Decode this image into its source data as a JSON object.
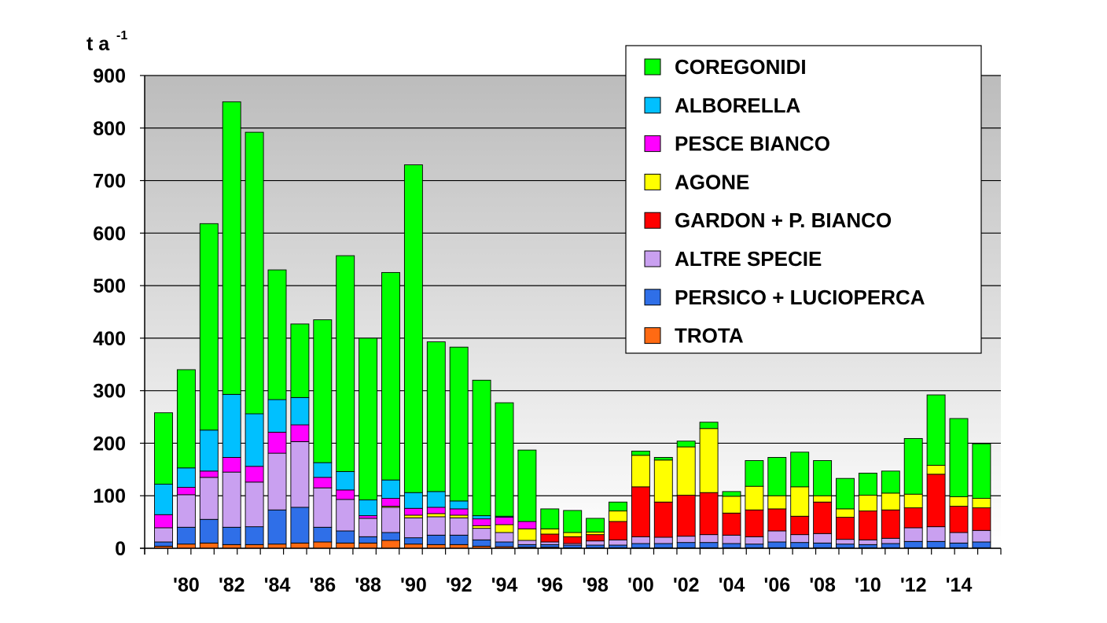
{
  "chart_data": {
    "type": "bar",
    "stacked": true,
    "title": "",
    "xlabel": "",
    "ylabel": "t a",
    "ylabel_superscript": "-1",
    "ylim": [
      0,
      900
    ],
    "y_ticks": [
      "900",
      "800",
      "700",
      "600",
      "500",
      "400",
      "300",
      "200",
      "100",
      "0"
    ],
    "y_tick_values": [
      900,
      800,
      700,
      600,
      500,
      400,
      300,
      200,
      100,
      0
    ],
    "grid": true,
    "legend_position": "top-right",
    "categories": [
      "1979",
      "1980",
      "1981",
      "1982",
      "1983",
      "1984",
      "1985",
      "1986",
      "1987",
      "1988",
      "1989",
      "1990",
      "1991",
      "1992",
      "1993",
      "1994",
      "1995",
      "1996",
      "1997",
      "1998",
      "1999",
      "2000",
      "2001",
      "2002",
      "2003",
      "2004",
      "2005",
      "2006",
      "2007",
      "2008",
      "2009",
      "2010",
      "2011",
      "2012",
      "2013",
      "2014",
      "2015"
    ],
    "x_tick_labels": [
      {
        "label": "'80",
        "category": "1980"
      },
      {
        "label": "'82",
        "category": "1982"
      },
      {
        "label": "'84",
        "category": "1984"
      },
      {
        "label": "'86",
        "category": "1986"
      },
      {
        "label": "'88",
        "category": "1988"
      },
      {
        "label": "'90",
        "category": "1990"
      },
      {
        "label": "'92",
        "category": "1992"
      },
      {
        "label": "'94",
        "category": "1994"
      },
      {
        "label": "'96",
        "category": "1996"
      },
      {
        "label": "'98",
        "category": "1998"
      },
      {
        "label": "'00",
        "category": "2000"
      },
      {
        "label": "'02",
        "category": "2002"
      },
      {
        "label": "'04",
        "category": "2004"
      },
      {
        "label": "'06",
        "category": "2006"
      },
      {
        "label": "'08",
        "category": "2008"
      },
      {
        "label": "'10",
        "category": "2010"
      },
      {
        "label": "'12",
        "category": "2012"
      },
      {
        "label": "'14",
        "category": "2014"
      }
    ],
    "series": [
      {
        "name": "TROTA",
        "color": "#ff6a13",
        "values": [
          4,
          8,
          10,
          7,
          7,
          8,
          10,
          12,
          10,
          10,
          15,
          8,
          7,
          7,
          4,
          3,
          2,
          2,
          1,
          1,
          1,
          1,
          1,
          1,
          1,
          1,
          1,
          1,
          1,
          1,
          1,
          1,
          1,
          1,
          1,
          1,
          1
        ]
      },
      {
        "name": "PERSICO + LUCIOPERCA",
        "color": "#2f6fe8",
        "values": [
          8,
          32,
          45,
          33,
          34,
          65,
          68,
          28,
          23,
          12,
          15,
          12,
          18,
          18,
          12,
          9,
          5,
          5,
          5,
          5,
          5,
          8,
          8,
          10,
          10,
          8,
          7,
          11,
          10,
          9,
          7,
          6,
          8,
          12,
          12,
          9,
          11
        ]
      },
      {
        "name": "ALTRE SPECIE",
        "color": "#c9a0f0",
        "values": [
          27,
          62,
          80,
          105,
          85,
          108,
          125,
          75,
          60,
          35,
          48,
          38,
          35,
          33,
          22,
          18,
          8,
          5,
          3,
          8,
          10,
          13,
          12,
          12,
          15,
          16,
          14,
          21,
          15,
          18,
          9,
          9,
          10,
          26,
          28,
          20,
          22
        ]
      },
      {
        "name": "GARDON + P. BIANCO",
        "color": "#ff0000",
        "values": [
          0,
          0,
          0,
          0,
          0,
          0,
          0,
          0,
          0,
          0,
          0,
          0,
          0,
          0,
          0,
          0,
          0,
          15,
          13,
          12,
          35,
          95,
          67,
          78,
          80,
          42,
          51,
          42,
          35,
          60,
          42,
          55,
          54,
          38,
          100,
          50,
          43
        ]
      },
      {
        "name": "AGONE",
        "color": "#ffff00",
        "values": [
          0,
          0,
          0,
          0,
          0,
          0,
          0,
          0,
          0,
          0,
          2,
          5,
          6,
          5,
          5,
          15,
          22,
          10,
          8,
          5,
          20,
          60,
          80,
          92,
          122,
          32,
          45,
          25,
          56,
          12,
          16,
          30,
          32,
          26,
          17,
          18,
          18
        ]
      },
      {
        "name": "PESCE BIANCO",
        "color": "#ff00ff",
        "values": [
          25,
          14,
          12,
          28,
          30,
          40,
          32,
          20,
          18,
          5,
          15,
          13,
          12,
          12,
          13,
          14,
          14,
          0,
          0,
          0,
          0,
          0,
          0,
          0,
          0,
          0,
          0,
          0,
          0,
          0,
          0,
          0,
          0,
          0,
          0,
          0,
          0
        ]
      },
      {
        "name": "ALBORELLA",
        "color": "#00c0ff",
        "values": [
          58,
          37,
          78,
          120,
          100,
          62,
          52,
          28,
          35,
          30,
          35,
          30,
          30,
          15,
          6,
          2,
          0,
          0,
          0,
          0,
          0,
          0,
          0,
          0,
          0,
          0,
          0,
          0,
          0,
          0,
          0,
          0,
          0,
          0,
          0,
          0,
          0
        ]
      },
      {
        "name": "COREGONIDI",
        "color": "#00ff00",
        "values": [
          136,
          187,
          393,
          557,
          536,
          247,
          140,
          272,
          411,
          308,
          395,
          624,
          285,
          293,
          258,
          216,
          136,
          38,
          42,
          26,
          17,
          8,
          5,
          11,
          12,
          9,
          49,
          73,
          66,
          67,
          58,
          42,
          42,
          106,
          134,
          149,
          104
        ]
      }
    ],
    "legend_order": [
      "COREGONIDI",
      "ALBORELLA",
      "PESCE BIANCO",
      "AGONE",
      "GARDON + P. BIANCO",
      "ALTRE SPECIE",
      "PERSICO + LUCIOPERCA",
      "TROTA"
    ]
  }
}
